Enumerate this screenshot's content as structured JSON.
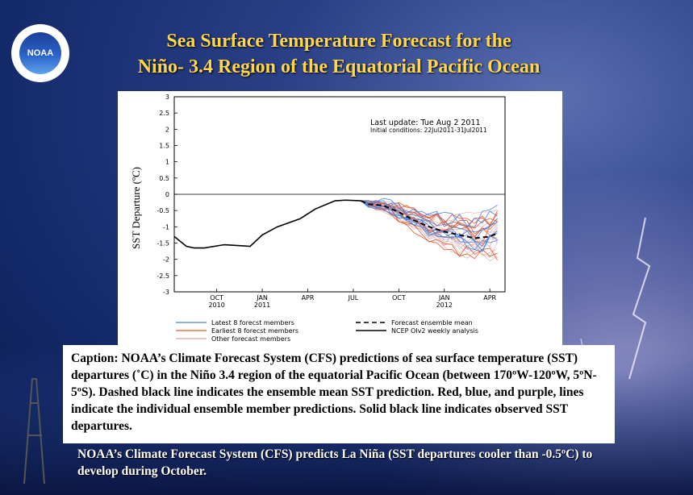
{
  "header": {
    "logo_text": "NOAA",
    "title_line1": "Sea Surface Temperature Forecast for the",
    "title_line2": "Niño- 3.4 Region of the Equatorial Pacific Ocean"
  },
  "chart_data": {
    "type": "line",
    "ylabel": "SST Departure (ºC)",
    "ylim": [
      -3,
      3
    ],
    "y_ticks": [
      3,
      2.5,
      2,
      1.5,
      1,
      0.5,
      0,
      -0.5,
      -1,
      -1.5,
      -2,
      -2.5,
      -3
    ],
    "x_ticks": [
      {
        "label": "OCT",
        "sub": "2010",
        "month": 3
      },
      {
        "label": "JAN",
        "sub": "2011",
        "month": 6
      },
      {
        "label": "APR",
        "sub": "",
        "month": 9
      },
      {
        "label": "JUL",
        "sub": "",
        "month": 12
      },
      {
        "label": "OCT",
        "sub": "",
        "month": 15
      },
      {
        "label": "JAN",
        "sub": "2012",
        "month": 18
      },
      {
        "label": "APR",
        "sub": "",
        "month": 21
      }
    ],
    "xlim": [
      0.2,
      22.0
    ],
    "annotations": {
      "last_update": "Last update: Tue Aug 2 2011",
      "initial_conditions": "Initial conditions: 22Jul2011-31Jul2011"
    },
    "legend": [
      {
        "label": "Latest 8 forecst members",
        "color": "#4a7fd9",
        "style": "solid"
      },
      {
        "label": "Earliest 8 forecst members",
        "color": "#e8582a",
        "style": "solid"
      },
      {
        "label": "Other forecast members",
        "color": "#d9a0a0",
        "style": "solid"
      },
      {
        "label": "Forecast ensemble mean",
        "color": "#000000",
        "style": "dashed"
      },
      {
        "label": "NCEP OIv2 weekly analysis",
        "color": "#000000",
        "style": "solid"
      }
    ],
    "observed": {
      "x": [
        0.2,
        1.0,
        1.5,
        2.2,
        3.5,
        4.5,
        5.2,
        6.0,
        7.0,
        8.5,
        9.5,
        10.8,
        11.5,
        12.5
      ],
      "y": [
        -1.3,
        -1.6,
        -1.65,
        -1.65,
        -1.55,
        -1.58,
        -1.6,
        -1.25,
        -1.0,
        -0.75,
        -0.45,
        -0.2,
        -0.18,
        -0.2
      ]
    },
    "ensemble_mean": {
      "x": [
        12.5,
        13.0,
        14.0,
        15.0,
        16.0,
        17.0,
        18.0,
        19.0,
        20.0,
        21.0,
        21.5
      ],
      "y": [
        -0.2,
        -0.3,
        -0.35,
        -0.55,
        -0.8,
        -1.0,
        -1.15,
        -1.25,
        -1.35,
        -1.3,
        -1.2
      ]
    },
    "member_groups": [
      {
        "name": "Latest 8 forecst members",
        "color": "#4a7fd9",
        "count": 8
      },
      {
        "name": "Earliest 8 forecst members",
        "color": "#e8582a",
        "count": 8
      },
      {
        "name": "Other forecast members",
        "color": "#d9a0a0",
        "count": 14
      }
    ]
  },
  "caption": {
    "text": "Caption: NOAA’s Climate Forecast System (CFS) predictions of sea surface temperature (SST) departures (˚C) in the Niño 3.4 region of the equatorial Pacific Ocean (between 170ºW-120ºW, 5ºN-5ºS). Dashed black line indicates the ensemble mean SST prediction. Red, blue, and purple, lines indicate the individual ensemble member predictions. Solid black line indicates observed SST departures."
  },
  "footer": {
    "text": "NOAA’s Climate Forecast System (CFS) predicts La Niña (SST departures cooler than -0.5ºC) to develop during October."
  }
}
